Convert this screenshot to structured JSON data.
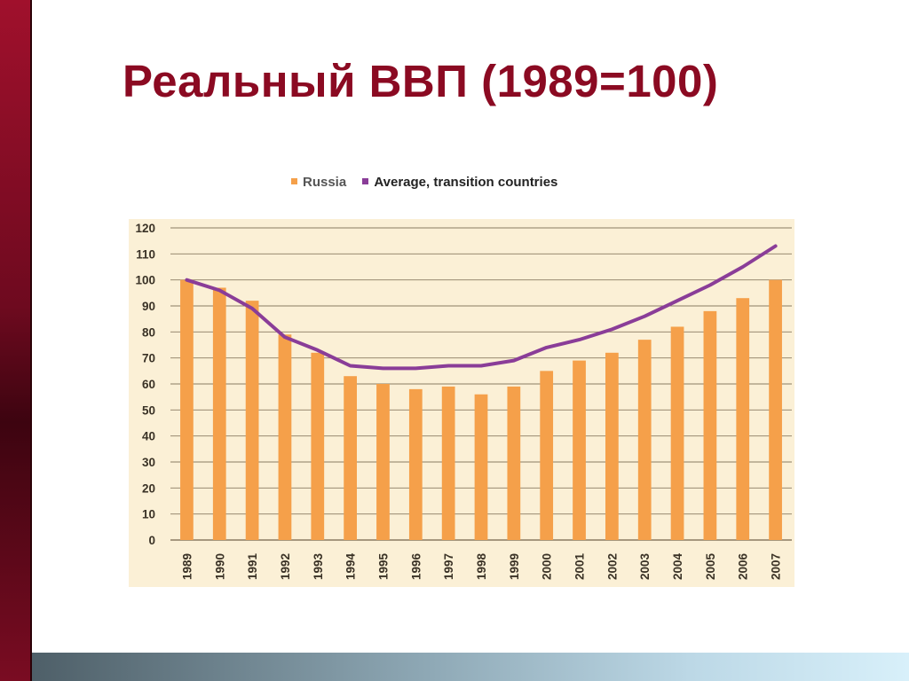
{
  "slide": {
    "title": "Реальный ВВП (1989=100)"
  },
  "colors": {
    "title": "#8b0a22",
    "plot_background": "#fbf0d6",
    "russia_bar": "#f5a04a",
    "average_line": "#8a3d98",
    "gridline": "#8a7b62"
  },
  "chart_data": {
    "type": "bar",
    "categories": [
      "1989",
      "1990",
      "1991",
      "1992",
      "1993",
      "1994",
      "1995",
      "1996",
      "1997",
      "1998",
      "1999",
      "2000",
      "2001",
      "2002",
      "2003",
      "2004",
      "2005",
      "2006",
      "2007"
    ],
    "series": [
      {
        "name": "Russia",
        "type": "bar",
        "values": [
          100,
          97,
          92,
          79,
          72,
          63,
          60,
          58,
          59,
          56,
          59,
          65,
          69,
          72,
          77,
          82,
          88,
          93,
          100
        ]
      },
      {
        "name": "Average, transition countries",
        "type": "line",
        "values": [
          100,
          96,
          89,
          78,
          73,
          67,
          66,
          66,
          67,
          67,
          69,
          74,
          77,
          81,
          86,
          92,
          98,
          105,
          113
        ]
      }
    ],
    "ylim": [
      0,
      120
    ],
    "yticks": [
      "0",
      "10",
      "20",
      "30",
      "40",
      "50",
      "60",
      "70",
      "80",
      "90",
      "100",
      "110",
      "120"
    ],
    "grid": true,
    "legend_position": "top"
  }
}
